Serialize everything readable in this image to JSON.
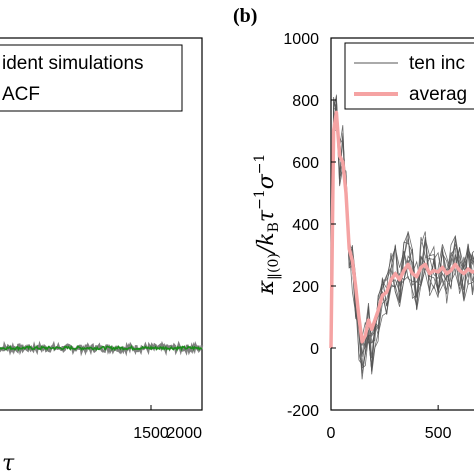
{
  "chart_data": [
    {
      "type": "line",
      "panel_label": "",
      "xlabel": "τ",
      "ylabel": "",
      "xlim": [
        0,
        2000
      ],
      "ylim": [
        -200,
        1000
      ],
      "xticks": [
        "1500",
        "2000"
      ],
      "yticks": [],
      "grid": false,
      "legend": {
        "placement": "top-left",
        "entries": [
          "ident simulations",
          "ACF"
        ]
      },
      "series": [
        {
          "name": "ident simulations",
          "color": "#808080",
          "style": "noisy band near zero",
          "x": [
            0,
            500,
            1000,
            1500,
            2000
          ],
          "y": [
            0,
            0,
            0,
            0,
            0
          ]
        },
        {
          "name": "ACF",
          "color": "#1a8c1a",
          "style": "average line",
          "x": [
            0,
            500,
            1000,
            1500,
            2000
          ],
          "y": [
            0,
            0,
            0,
            0,
            0
          ]
        }
      ]
    },
    {
      "type": "line",
      "panel_label": "(b)",
      "xlabel": "",
      "ylabel": "κ‖(0) / kB τ⁻¹ σ⁻¹",
      "ylabel_parts": {
        "kappa": "κ",
        "sub": "‖(0)",
        "mid": "/k",
        "sub2": "B",
        "tau": "τ",
        "sup1": "−1",
        "sigma": "σ",
        "sup2": "−1"
      },
      "xlim": [
        0,
        700
      ],
      "ylim": [
        -200,
        1000
      ],
      "xticks": [
        "0",
        "500"
      ],
      "yticks": [
        "-200",
        "0",
        "200",
        "400",
        "600",
        "800",
        "1000"
      ],
      "grid": false,
      "legend": {
        "placement": "top-right",
        "entries": [
          "ten inc",
          "averag"
        ]
      },
      "series": [
        {
          "name": "ten inc",
          "color": "#555555",
          "style": "ten thin lines",
          "x": [
            0,
            12,
            25,
            40,
            55,
            70,
            85,
            100,
            115,
            130,
            145,
            160,
            175,
            190,
            205,
            220,
            240,
            260,
            280,
            300,
            320,
            340,
            360,
            380,
            400,
            420,
            440,
            460,
            480,
            500,
            520,
            540,
            560,
            580,
            600,
            620,
            640,
            660,
            680,
            700
          ],
          "y": [
            0,
            750,
            780,
            600,
            640,
            520,
            300,
            260,
            160,
            40,
            -40,
            20,
            80,
            -20,
            60,
            100,
            180,
            160,
            230,
            260,
            210,
            270,
            300,
            240,
            200,
            280,
            300,
            220,
            260,
            240,
            280,
            220,
            260,
            300,
            250,
            220,
            270,
            240,
            260,
            230
          ]
        },
        {
          "name": "averag",
          "color": "#f5a3a3",
          "style": "thick average line",
          "x": [
            0,
            12,
            25,
            40,
            55,
            70,
            85,
            100,
            115,
            130,
            145,
            160,
            175,
            190,
            205,
            220,
            240,
            260,
            280,
            300,
            320,
            340,
            360,
            380,
            400,
            420,
            440,
            460,
            480,
            500,
            520,
            540,
            560,
            580,
            600,
            620,
            640,
            660,
            680,
            700
          ],
          "y": [
            0,
            700,
            760,
            620,
            600,
            500,
            320,
            280,
            200,
            100,
            20,
            40,
            90,
            60,
            90,
            120,
            170,
            180,
            220,
            240,
            220,
            250,
            270,
            240,
            230,
            260,
            270,
            240,
            250,
            245,
            260,
            240,
            250,
            270,
            250,
            240,
            255,
            245,
            250,
            240
          ]
        }
      ]
    }
  ]
}
